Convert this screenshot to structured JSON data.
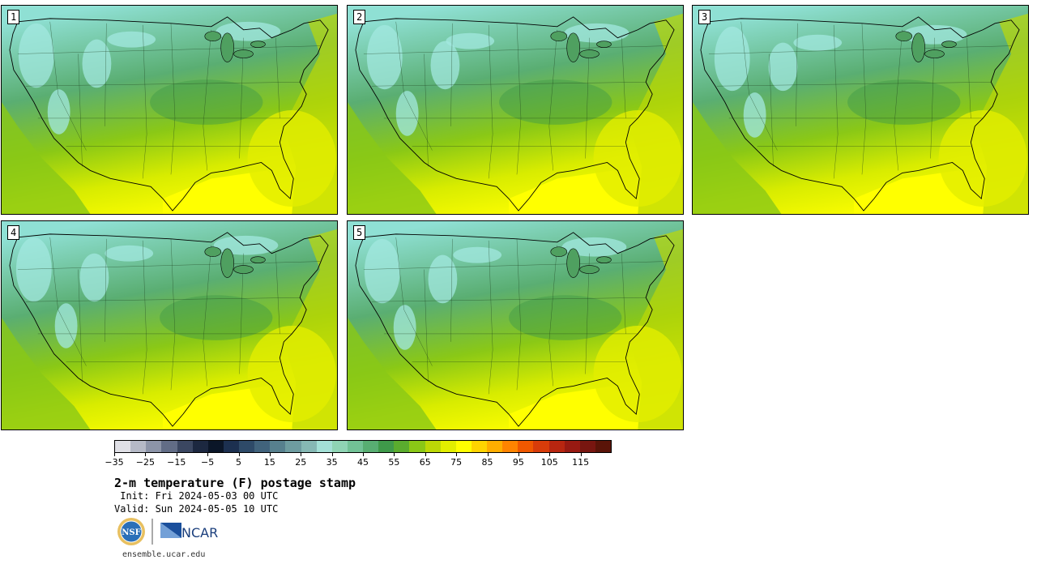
{
  "stamps": [
    {
      "number": "1"
    },
    {
      "number": "2"
    },
    {
      "number": "3"
    },
    {
      "number": "4"
    },
    {
      "number": "5"
    }
  ],
  "colorbar": {
    "colors": [
      "#e0e0e6",
      "#b5b9c6",
      "#8c94a8",
      "#626d86",
      "#3b4761",
      "#1c2840",
      "#0b1628",
      "#1c3050",
      "#2e4a68",
      "#41637c",
      "#57808e",
      "#6e9ca0",
      "#86b8b4",
      "#a3e0d6",
      "#8fd4b4",
      "#72c296",
      "#58ae72",
      "#3f9a4a",
      "#5aac2e",
      "#8ac816",
      "#bcd806",
      "#e2ee00",
      "#ffff00",
      "#ffd400",
      "#ffae00",
      "#ff8400",
      "#f05800",
      "#d83c0a",
      "#b82610",
      "#981a12",
      "#781610",
      "#5a1408"
    ],
    "tick_labels": [
      "−35",
      "−25",
      "−15",
      "−5",
      "5",
      "15",
      "25",
      "35",
      "45",
      "55",
      "65",
      "75",
      "85",
      "95",
      "105",
      "115"
    ]
  },
  "title": "2-m temperature (F) postage stamp",
  "init": " Init: Fri 2024-05-03 00 UTC",
  "valid": "Valid: Sun 2024-05-05 10 UTC",
  "logos": {
    "nsf": "NSF",
    "ncar": "NCAR"
  },
  "site": "ensemble.ucar.edu"
}
